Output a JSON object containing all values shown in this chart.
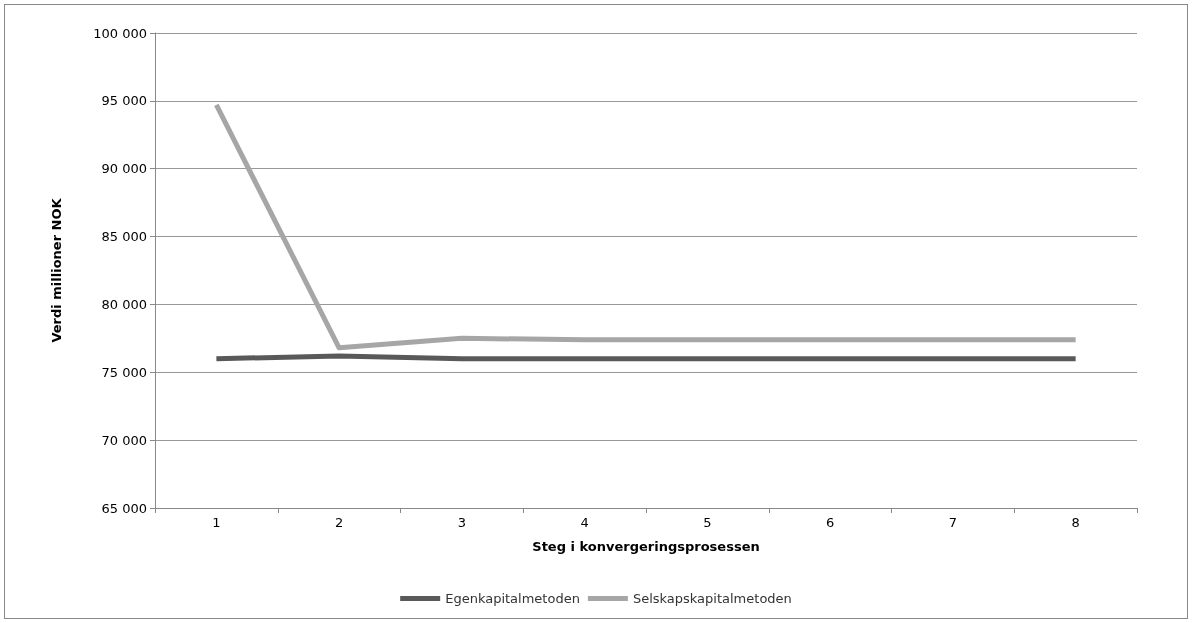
{
  "chart_data": {
    "type": "line",
    "xlabel": "Steg i konvergeringsprosessen",
    "ylabel": "Verdi millioner NOK",
    "categories": [
      "1",
      "2",
      "3",
      "4",
      "5",
      "6",
      "7",
      "8"
    ],
    "series": [
      {
        "name": "Egenkapitalmetoden",
        "color": "#595959",
        "values": [
          76000,
          76200,
          76000,
          76000,
          76000,
          76000,
          76000,
          76000
        ]
      },
      {
        "name": "Selskapskapitalmetoden",
        "color": "#a6a6a6",
        "values": [
          94700,
          76800,
          77500,
          77400,
          77400,
          77400,
          77400,
          77400
        ]
      }
    ],
    "ylim": [
      65000,
      100000
    ],
    "yticks": [
      {
        "value": 65000,
        "label": "65 000"
      },
      {
        "value": 70000,
        "label": "70 000"
      },
      {
        "value": 75000,
        "label": "75 000"
      },
      {
        "value": 80000,
        "label": "80 000"
      },
      {
        "value": 85000,
        "label": "85 000"
      },
      {
        "value": 90000,
        "label": "90 000"
      },
      {
        "value": 95000,
        "label": "95 000"
      },
      {
        "value": 100000,
        "label": "100 000"
      }
    ],
    "grid": "y",
    "legend": "bottom",
    "marker": "none",
    "line_style": "solid"
  }
}
